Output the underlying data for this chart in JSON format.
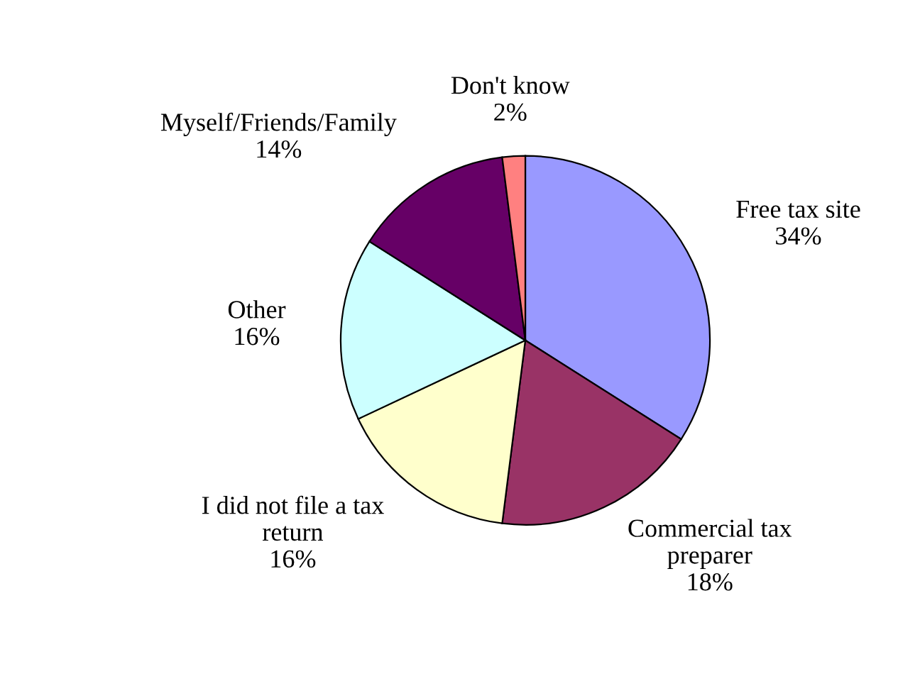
{
  "chart_data": {
    "type": "pie",
    "categories": [
      "Free tax site",
      "Commercial tax preparer",
      "I did not file a tax return",
      "Other",
      "Myself/Friends/Family",
      "Don't know"
    ],
    "values": [
      34,
      18,
      16,
      16,
      14,
      2
    ],
    "colors": [
      "#9999ff",
      "#993366",
      "#ffffcc",
      "#ccffff",
      "#660066",
      "#ff8080"
    ],
    "value_labels": [
      "34%",
      "18%",
      "16%",
      "16%",
      "14%",
      "2%"
    ]
  }
}
